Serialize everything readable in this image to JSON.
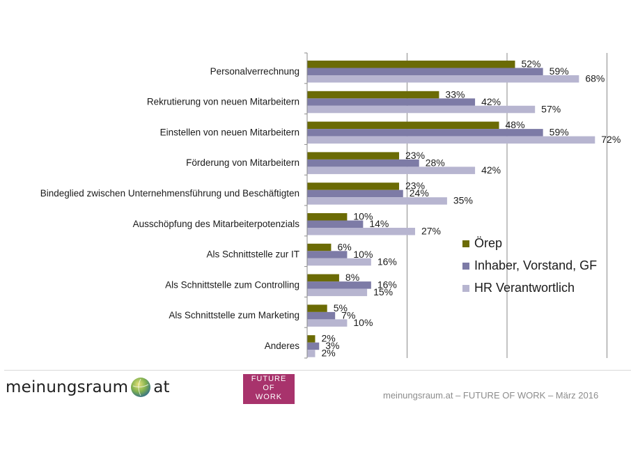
{
  "chart_data": {
    "type": "bar",
    "orientation": "horizontal",
    "categories": [
      "Personalverrechnung",
      "Rekrutierung von neuen Mitarbeitern",
      "Einstellen von neuen Mitarbeitern",
      "Förderung von Mitarbeitern",
      "Bindeglied zwischen Unternehmensführung und Beschäftigten",
      "Ausschöpfung des Mitarbeiterpotenzials",
      "Als Schnittstelle zur IT",
      "Als Schnittstelle zum Controlling",
      "Als Schnittstelle zum Marketing",
      "Anderes"
    ],
    "series": [
      {
        "name": "Örep",
        "color": "#6b6b05",
        "values": [
          52,
          33,
          48,
          23,
          23,
          10,
          6,
          8,
          5,
          2
        ]
      },
      {
        "name": "Inhaber, Vorstand, GF",
        "color": "#7d7ba6",
        "values": [
          59,
          42,
          59,
          28,
          24,
          14,
          10,
          16,
          7,
          3
        ]
      },
      {
        "name": "HR Verantwortlich",
        "color": "#b7b5d0",
        "values": [
          68,
          57,
          72,
          42,
          35,
          27,
          16,
          15,
          10,
          2
        ]
      }
    ],
    "value_suffix": "%",
    "xlim": [
      0,
      75
    ],
    "grid_step": 25,
    "grid": true,
    "legend_position": "right"
  },
  "footer": {
    "brand_left": "meinungsraum",
    "brand_right": "at",
    "badge_lines": [
      "FUTURE",
      "OF",
      "WORK"
    ],
    "caption": "meinungsraum.at – FUTURE OF WORK – März 2016"
  }
}
